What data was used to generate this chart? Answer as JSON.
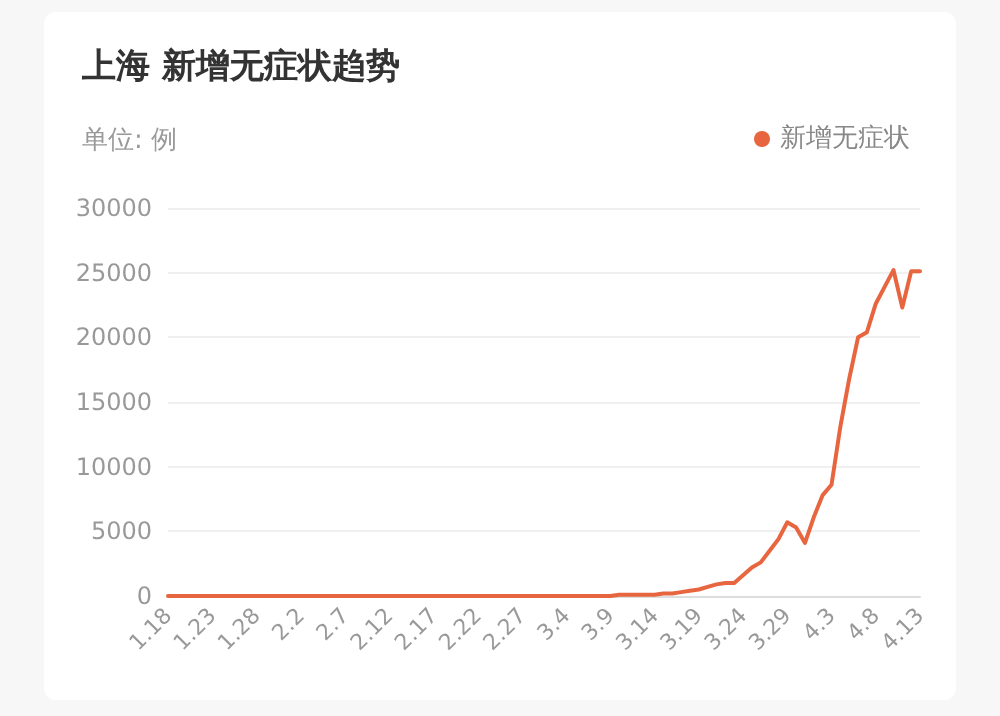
{
  "chart_data": {
    "type": "line",
    "title": "上海 新增无症状趋势",
    "ylabel": "单位: 例",
    "categories": [
      "1.18",
      null,
      null,
      null,
      null,
      "1.23",
      null,
      null,
      null,
      null,
      "1.28",
      null,
      null,
      null,
      null,
      "2.2",
      null,
      null,
      null,
      null,
      "2.7",
      null,
      null,
      null,
      null,
      "2.12",
      null,
      null,
      null,
      null,
      "2.17",
      null,
      null,
      null,
      null,
      "2.22",
      null,
      null,
      null,
      null,
      "2.27",
      null,
      null,
      null,
      null,
      "3.4",
      null,
      null,
      null,
      null,
      "3.9",
      null,
      null,
      null,
      null,
      "3.14",
      null,
      null,
      null,
      null,
      "3.19",
      null,
      null,
      null,
      null,
      "3.24",
      null,
      null,
      null,
      null,
      "3.29",
      null,
      null,
      null,
      null,
      "4.3",
      null,
      null,
      null,
      null,
      "4.8",
      null,
      null,
      null,
      null,
      "4.13"
    ],
    "series": [
      {
        "name": "新增无症状",
        "color": "#e8663f",
        "values": [
          0,
          0,
          0,
          0,
          0,
          0,
          0,
          0,
          0,
          0,
          0,
          0,
          0,
          0,
          0,
          0,
          0,
          0,
          0,
          0,
          0,
          0,
          0,
          0,
          0,
          0,
          0,
          0,
          0,
          0,
          0,
          0,
          0,
          0,
          0,
          0,
          0,
          0,
          0,
          0,
          0,
          0,
          0,
          0,
          0,
          0,
          0,
          0,
          0,
          0,
          0,
          100,
          100,
          100,
          100,
          100,
          200,
          200,
          300,
          400,
          500,
          700,
          900,
          1000,
          1000,
          1600,
          2200,
          2600,
          3500,
          4400,
          5700,
          5300,
          4100,
          6100,
          7800,
          8600,
          13100,
          16800,
          20000,
          20400,
          22600,
          23900,
          25200,
          22300,
          25100,
          25100
        ]
      }
    ],
    "ylim": [
      0,
      30000
    ],
    "yticks": [
      0,
      5000,
      10000,
      15000,
      20000,
      25000,
      30000
    ],
    "grid": "y",
    "legend": "top right",
    "marker": "none",
    "line_style": "solid"
  }
}
